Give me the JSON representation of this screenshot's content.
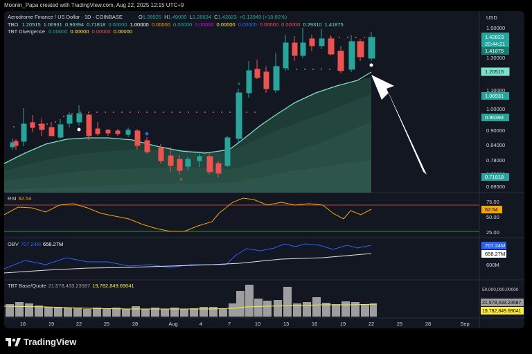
{
  "header": {
    "creator": "Moonin_Papa created with TradingView.com, Aug 22, 2025 12:15 UTC+9"
  },
  "main_chart": {
    "symbol": "Aerodrome Finance / US Dollar · 1D · COINBASE",
    "ohlc": {
      "O": "O",
      "o_val": "1.28925",
      "H": "H",
      "h_val": "1.49000",
      "L": "L",
      "l_val": "1.28634",
      "C": "C",
      "c_val": "1.42823",
      "change": "+0.13949 (+10.82%)"
    },
    "tbo": {
      "label": "TBO",
      "v1": "1.20515",
      "v2": "1.06931",
      "v3": "0.96394",
      "v4": "0.71818",
      "v5": "0.00000",
      "v6": "1.00000",
      "v7": "0.00000",
      "v8": "0.00000",
      "v9": "0.00000",
      "v10": "0.00000",
      "v11": "0.00000",
      "v12": "0.00000",
      "v13": "0.00000",
      "v14": "0.29310",
      "v15": "1.41875"
    },
    "tbt_div": {
      "label": "TBT Divergence",
      "v1": "0.00000",
      "v2": "0.00000",
      "v3": "0.00000",
      "v4": "0.00000"
    },
    "currency": "USD",
    "price_axis": [
      "1.50000",
      "1.30000",
      "1.10000",
      "1.00000",
      "0.90000",
      "0.84000",
      "0.78000",
      "0.72000",
      "0.68500"
    ],
    "price_badges": {
      "close": "1.42823",
      "countdown": "20:44:21",
      "b2": "1.41875",
      "b3": "1.20515",
      "b4": "1.06931",
      "b5": "0.96394",
      "b6": "0.71818"
    },
    "colors": {
      "up": "#26a69a",
      "down": "#ef5350",
      "band": "#2a4e45",
      "line": "#7fe0c8"
    }
  },
  "rsi": {
    "label": "RSI",
    "value": "62.54",
    "levels": [
      "75.00",
      "50.00",
      "25.00"
    ],
    "badge": "62.54"
  },
  "obv": {
    "label": "OBV",
    "v1": "707.24M",
    "v2": "658.27M",
    "axis": "600M",
    "badge1": "707.24M",
    "badge2": "658.27M"
  },
  "tbt_base": {
    "label": "TBT Base/Quote",
    "v1": "21,578,433.23587",
    "v2": "19,782,849.69041",
    "axis": "50,000,000.00000",
    "badge1": "21,578,433.23587",
    "badge2": "19,782,849.69041"
  },
  "time_axis": [
    "16",
    "19",
    "22",
    "25",
    "28",
    "Aug",
    "4",
    "7",
    "10",
    "13",
    "16",
    "19",
    "22",
    "25",
    "28",
    "Sep"
  ],
  "brand": {
    "name": "TradingView"
  }
}
